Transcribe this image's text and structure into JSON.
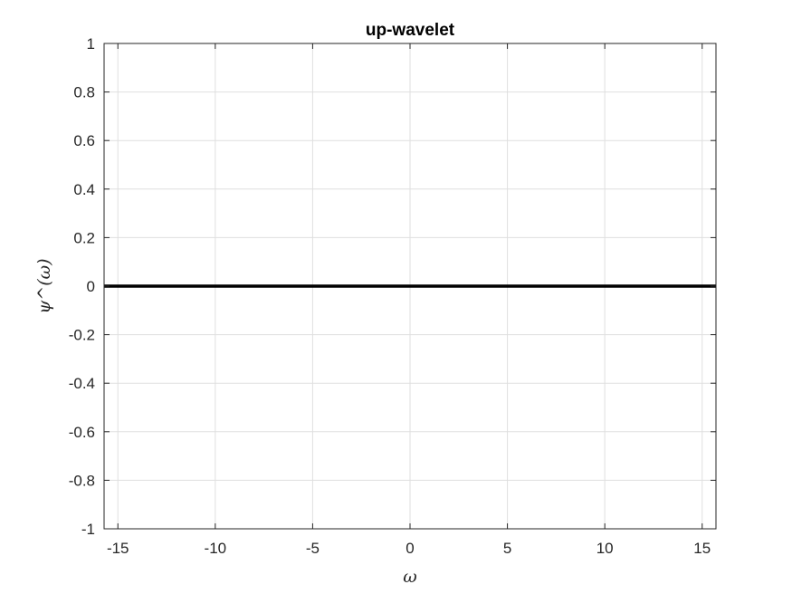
{
  "chart_data": {
    "type": "line",
    "title": "up-wavelet",
    "xlabel": "ω",
    "ylabel": "ψ^(ω)",
    "xlim": [
      -15.708,
      15.708
    ],
    "ylim": [
      -1,
      1
    ],
    "xticks": [
      -15,
      -10,
      -5,
      0,
      5,
      10,
      15
    ],
    "yticks": [
      1,
      0.8,
      0.6,
      0.4,
      0.2,
      0,
      -0.2,
      -0.4,
      -0.6,
      -0.8,
      -1
    ],
    "xtick_labels": [
      "-15",
      "-10",
      "-5",
      "0",
      "5",
      "10",
      "15"
    ],
    "ytick_labels": [
      "1",
      "0.8",
      "0.6",
      "0.4",
      "0.2",
      "0",
      "-0.2",
      "-0.4",
      "-0.6",
      "-0.8",
      "-1"
    ],
    "grid": true,
    "series": [
      {
        "x": [
          -15.708,
          -10,
          -5,
          0,
          5,
          10,
          15.708
        ],
        "values": [
          0,
          0,
          0,
          0,
          0,
          0,
          0
        ],
        "color": "#000000"
      }
    ]
  }
}
